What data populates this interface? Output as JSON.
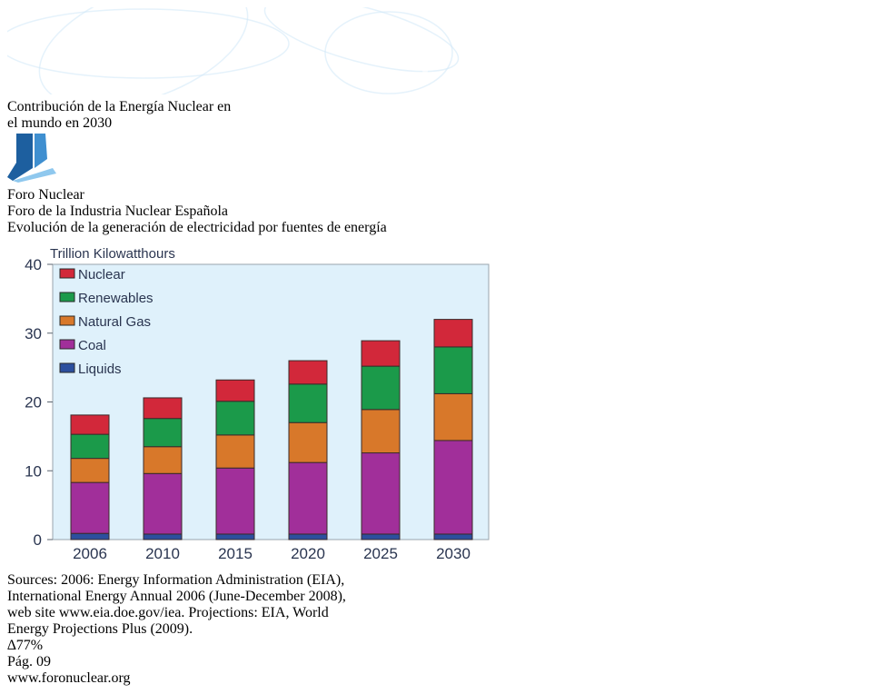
{
  "header": {
    "title_line1": "Contribución de la Energía Nuclear en",
    "title_line2": "el mundo en 2030"
  },
  "logo": {
    "name_part1": "Foro ",
    "name_part2": "Nuclear",
    "tagline": "Foro de la Industria Nuclear Española",
    "color": "#2b74b8"
  },
  "main": {
    "heading": "Evolución de la generación de electricidad por fuentes de energía"
  },
  "callout": {
    "delta": "∆77%"
  },
  "chart_data": {
    "type": "bar",
    "stacked": true,
    "title": "Trillion Kilowatthours",
    "xlabel": "",
    "ylabel": "",
    "ylim": [
      0,
      40
    ],
    "yticks": [
      0,
      10,
      20,
      30,
      40
    ],
    "categories": [
      "2006",
      "2010",
      "2015",
      "2020",
      "2025",
      "2030"
    ],
    "series": [
      {
        "name": "Liquids",
        "color": "#2c4f9e",
        "values": [
          0.9,
          0.8,
          0.8,
          0.8,
          0.8,
          0.8
        ]
      },
      {
        "name": "Coal",
        "color": "#a12f9a",
        "values": [
          7.4,
          8.8,
          9.6,
          10.4,
          11.8,
          13.6
        ]
      },
      {
        "name": "Natural Gas",
        "color": "#d8782a",
        "values": [
          3.5,
          3.9,
          4.8,
          5.8,
          6.3,
          6.8
        ]
      },
      {
        "name": "Renewables",
        "color": "#1b9a4a",
        "values": [
          3.5,
          4.1,
          4.9,
          5.6,
          6.3,
          6.8
        ]
      },
      {
        "name": "Nuclear",
        "color": "#d2283a",
        "values": [
          2.8,
          3.0,
          3.1,
          3.4,
          3.7,
          4.0
        ]
      }
    ],
    "legend": [
      "Nuclear",
      "Renewables",
      "Natural Gas",
      "Coal",
      "Liquids"
    ],
    "legend_position": "top-left",
    "plot_background": "#dff1fb",
    "grid": false
  },
  "sources": {
    "line1": "Sources: 2006: Energy Information Administration (EIA),",
    "line2": "International Energy Annual 2006 (June-December 2008),",
    "line3": "web site www.eia.doe.gov/iea. Projections: EIA, World",
    "line4": "Energy Projections Plus (2009)."
  },
  "footer": {
    "page_label": "Pág. ",
    "page_number": "09",
    "url": "www.foronuclear.org",
    "color": "#79b83a"
  }
}
